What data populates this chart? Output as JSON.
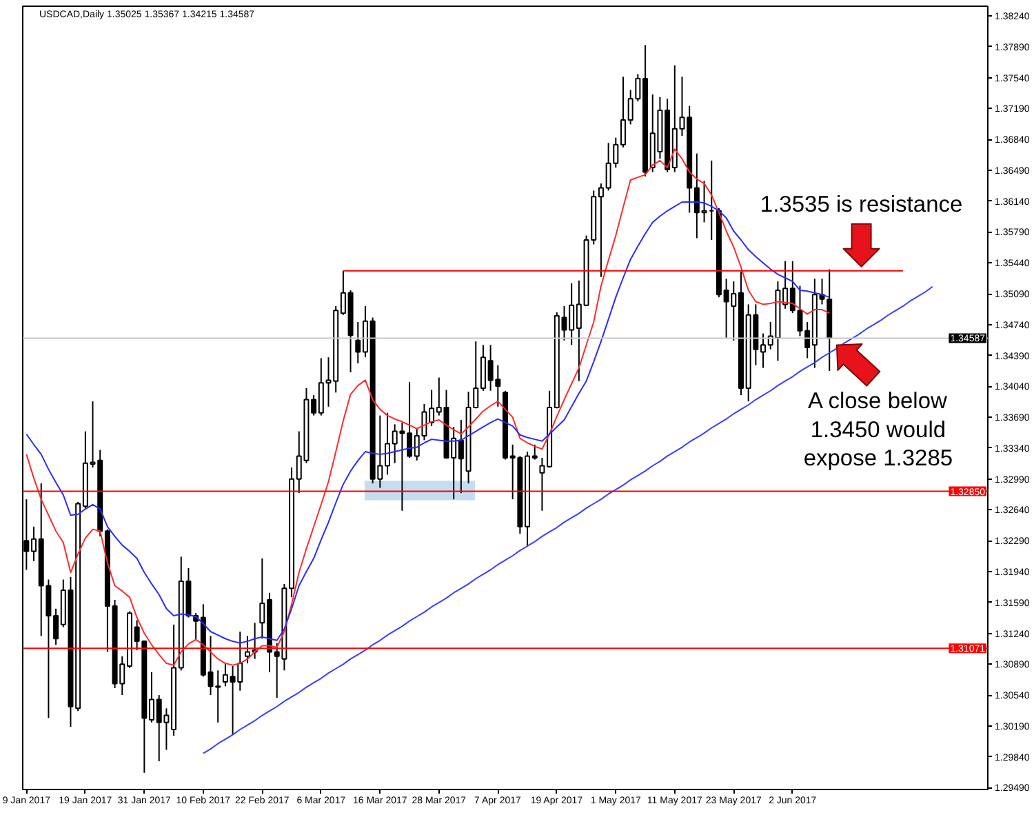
{
  "chart_data": {
    "type": "candlestick",
    "title": "USDCAD,Daily 1.35025 1.35367 1.34215 1.34587",
    "color": "#000000",
    "grid": false,
    "ylim": [
      1.2947,
      1.3835
    ],
    "yticks": [
      {
        "value": 1.2949,
        "label": "1.29490"
      },
      {
        "value": 1.2984,
        "label": "1.29840"
      },
      {
        "value": 1.3019,
        "label": "1.30190"
      },
      {
        "value": 1.3054,
        "label": "1.30540"
      },
      {
        "value": 1.3089,
        "label": "1.30890"
      },
      {
        "value": 1.3124,
        "label": "1.31240"
      },
      {
        "value": 1.3159,
        "label": "1.31590"
      },
      {
        "value": 1.3194,
        "label": "1.31940"
      },
      {
        "value": 1.3229,
        "label": "1.32290"
      },
      {
        "value": 1.3264,
        "label": "1.32640"
      },
      {
        "value": 1.3299,
        "label": "1.32990"
      },
      {
        "value": 1.3334,
        "label": "1.33340"
      },
      {
        "value": 1.3369,
        "label": "1.33690"
      },
      {
        "value": 1.3404,
        "label": "1.34040"
      },
      {
        "value": 1.3439,
        "label": "1.34390"
      },
      {
        "value": 1.3474,
        "label": "1.34740"
      },
      {
        "value": 1.3509,
        "label": "1.35090"
      },
      {
        "value": 1.3544,
        "label": "1.35440"
      },
      {
        "value": 1.3579,
        "label": "1.35790"
      },
      {
        "value": 1.3614,
        "label": "1.36140"
      },
      {
        "value": 1.3649,
        "label": "1.36490"
      },
      {
        "value": 1.3684,
        "label": "1.36840"
      },
      {
        "value": 1.3719,
        "label": "1.37190"
      },
      {
        "value": 1.3754,
        "label": "1.37540"
      },
      {
        "value": 1.3789,
        "label": "1.37890"
      },
      {
        "value": 1.3824,
        "label": "1.38240"
      }
    ],
    "categories": [
      "9 Jan 2017",
      null,
      null,
      null,
      null,
      null,
      null,
      null,
      "19 Jan 2017",
      null,
      null,
      null,
      null,
      null,
      null,
      null,
      "31 Jan 2017",
      null,
      null,
      null,
      null,
      null,
      null,
      null,
      "10 Feb 2017",
      null,
      null,
      null,
      null,
      null,
      null,
      null,
      "22 Feb 2017",
      null,
      null,
      null,
      null,
      null,
      null,
      null,
      "6 Mar 2017",
      null,
      null,
      null,
      null,
      null,
      null,
      null,
      "16 Mar 2017",
      null,
      null,
      null,
      null,
      null,
      null,
      null,
      "28 Mar 2017",
      null,
      null,
      null,
      null,
      null,
      null,
      null,
      "7 Apr 2017",
      null,
      null,
      null,
      null,
      null,
      null,
      null,
      "19 Apr 2017",
      null,
      null,
      null,
      null,
      null,
      null,
      null,
      "1 May 2017",
      null,
      null,
      null,
      null,
      null,
      null,
      null,
      "11 May 2017",
      null,
      null,
      null,
      null,
      null,
      null,
      null,
      "23 May 2017",
      null,
      null,
      null,
      null,
      null,
      null,
      null,
      "2 Jun 2017",
      null,
      null,
      null,
      null,
      null,
      null,
      null,
      null,
      null,
      null,
      null,
      null,
      null,
      null,
      null,
      null,
      null,
      null,
      null,
      null,
      null,
      null,
      null,
      null,
      null,
      null
    ],
    "ohlc": [
      [
        1.3229,
        1.3276,
        1.3196,
        1.3217
      ],
      [
        1.3217,
        1.3245,
        1.3206,
        1.3231
      ],
      [
        1.3231,
        1.3294,
        1.3121,
        1.3178
      ],
      [
        1.3178,
        1.3185,
        1.3028,
        1.3144
      ],
      [
        1.3144,
        1.3152,
        1.3111,
        1.3118
      ],
      [
        1.3134,
        1.3185,
        1.3131,
        1.3173
      ],
      [
        1.3173,
        1.3188,
        1.3018,
        1.3041
      ],
      [
        1.3039,
        1.3273,
        1.3036,
        1.3271
      ],
      [
        1.3268,
        1.3353,
        1.3265,
        1.3317
      ],
      [
        1.3316,
        1.3387,
        1.3312,
        1.3318
      ],
      [
        1.332,
        1.3332,
        1.3234,
        1.324
      ],
      [
        1.324,
        1.3242,
        1.3103,
        1.3155
      ],
      [
        1.3155,
        1.3162,
        1.3062,
        1.3067
      ],
      [
        1.3067,
        1.3098,
        1.3054,
        1.3089
      ],
      [
        1.3087,
        1.3149,
        1.3085,
        1.3147
      ],
      [
        1.3131,
        1.3139,
        1.3105,
        1.3115
      ],
      [
        1.3115,
        1.3116,
        1.2966,
        1.3028
      ],
      [
        1.3026,
        1.308,
        1.3023,
        1.3049
      ],
      [
        1.3049,
        1.3054,
        1.2979,
        1.3023
      ],
      [
        1.3023,
        1.3039,
        1.2992,
        1.3031
      ],
      [
        1.3015,
        1.3134,
        1.3008,
        1.3085
      ],
      [
        1.3085,
        1.3211,
        1.3082,
        1.3183
      ],
      [
        1.3183,
        1.3198,
        1.3142,
        1.3144
      ],
      [
        1.3144,
        1.3147,
        1.3116,
        1.3138
      ],
      [
        1.3142,
        1.3157,
        1.3075,
        1.3077
      ],
      [
        1.308,
        1.3121,
        1.3054,
        1.3064
      ],
      [
        1.3064,
        1.3082,
        1.3023,
        1.3063
      ],
      [
        1.3069,
        1.309,
        1.3064,
        1.3077
      ],
      [
        1.3075,
        1.3087,
        1.3009,
        1.3069
      ],
      [
        1.3069,
        1.3126,
        1.3059,
        1.309
      ],
      [
        1.3098,
        1.3121,
        1.309,
        1.3103
      ],
      [
        1.3103,
        1.3136,
        1.3095,
        1.3105
      ],
      [
        1.3136,
        1.3209,
        1.3118,
        1.3158
      ],
      [
        1.3162,
        1.317,
        1.308,
        1.3103
      ],
      [
        1.3103,
        1.3113,
        1.3051,
        1.3098
      ],
      [
        1.3095,
        1.318,
        1.3082,
        1.3175
      ],
      [
        1.3175,
        1.3312,
        1.3165,
        1.3299
      ],
      [
        1.3299,
        1.3353,
        1.3283,
        1.3325
      ],
      [
        1.332,
        1.3402,
        1.3317,
        1.3389
      ],
      [
        1.3389,
        1.3394,
        1.3371,
        1.3374
      ],
      [
        1.3374,
        1.3436,
        1.3371,
        1.3408
      ],
      [
        1.3408,
        1.3437,
        1.3381,
        1.3411
      ],
      [
        1.341,
        1.3495,
        1.3397,
        1.349
      ],
      [
        1.3487,
        1.3535,
        1.3485,
        1.351
      ],
      [
        1.351,
        1.3513,
        1.342,
        1.3462
      ],
      [
        1.3456,
        1.3477,
        1.343,
        1.3443
      ],
      [
        1.3443,
        1.3495,
        1.3437,
        1.3478
      ],
      [
        1.3478,
        1.3482,
        1.3294,
        1.3299
      ],
      [
        1.3299,
        1.3371,
        1.3289,
        1.3314
      ],
      [
        1.3314,
        1.3374,
        1.3304,
        1.3339
      ],
      [
        1.3339,
        1.3361,
        1.3317,
        1.3353
      ],
      [
        1.3353,
        1.3363,
        1.3263,
        1.3351
      ],
      [
        1.3351,
        1.3409,
        1.3323,
        1.3325
      ],
      [
        1.3325,
        1.3356,
        1.332,
        1.3348
      ],
      [
        1.3348,
        1.3384,
        1.3343,
        1.3375
      ],
      [
        1.3363,
        1.34,
        1.3359,
        1.3379
      ],
      [
        1.3375,
        1.3414,
        1.3371,
        1.338
      ],
      [
        1.338,
        1.34,
        1.3322,
        1.3323
      ],
      [
        1.3323,
        1.3358,
        1.3276,
        1.3345
      ],
      [
        1.3343,
        1.3366,
        1.3283,
        1.3322
      ],
      [
        1.3308,
        1.3398,
        1.3294,
        1.338
      ],
      [
        1.338,
        1.3455,
        1.3379,
        1.3402
      ],
      [
        1.3402,
        1.3451,
        1.3399,
        1.3437
      ],
      [
        1.3433,
        1.3451,
        1.3399,
        1.3411
      ],
      [
        1.3412,
        1.3428,
        1.3381,
        1.3404
      ],
      [
        1.3397,
        1.3399,
        1.3321,
        1.3323
      ],
      [
        1.3325,
        1.3338,
        1.3276,
        1.3323
      ],
      [
        1.3323,
        1.3325,
        1.3237,
        1.3245
      ],
      [
        1.3245,
        1.333,
        1.3223,
        1.3325
      ],
      [
        1.3325,
        1.3338,
        1.3321,
        1.3323
      ],
      [
        1.3306,
        1.3323,
        1.3263,
        1.3314
      ],
      [
        1.3313,
        1.3399,
        1.3312,
        1.338
      ],
      [
        1.338,
        1.3488,
        1.3379,
        1.3484
      ],
      [
        1.3482,
        1.3495,
        1.3456,
        1.3468
      ],
      [
        1.3468,
        1.3521,
        1.3451,
        1.3496
      ],
      [
        1.347,
        1.3524,
        1.341,
        1.3497
      ],
      [
        1.3496,
        1.3575,
        1.3495,
        1.357
      ],
      [
        1.357,
        1.3626,
        1.3565,
        1.3619
      ],
      [
        1.3619,
        1.3634,
        1.3528,
        1.3629
      ],
      [
        1.3629,
        1.368,
        1.3626,
        1.3657
      ],
      [
        1.3657,
        1.3686,
        1.3652,
        1.3678
      ],
      [
        1.3678,
        1.3755,
        1.3675,
        1.3706
      ],
      [
        1.3706,
        1.374,
        1.3701,
        1.373
      ],
      [
        1.373,
        1.3758,
        1.3727,
        1.3753
      ],
      [
        1.3753,
        1.3791,
        1.3642,
        1.3647
      ],
      [
        1.3652,
        1.3735,
        1.3647,
        1.3691
      ],
      [
        1.367,
        1.3732,
        1.3662,
        1.3717
      ],
      [
        1.3717,
        1.373,
        1.3647,
        1.365
      ],
      [
        1.3652,
        1.3768,
        1.3647,
        1.3696
      ],
      [
        1.3696,
        1.3755,
        1.3688,
        1.3709
      ],
      [
        1.3709,
        1.3722,
        1.3601,
        1.3629
      ],
      [
        1.3629,
        1.3668,
        1.3572,
        1.3601
      ],
      [
        1.3601,
        1.3637,
        1.359,
        1.3603
      ],
      [
        1.3603,
        1.366,
        1.357,
        1.3603
      ],
      [
        1.3603,
        1.3606,
        1.3505,
        1.3508
      ],
      [
        1.3513,
        1.3526,
        1.3459,
        1.35
      ],
      [
        1.3495,
        1.3523,
        1.3456,
        1.3509
      ],
      [
        1.351,
        1.3534,
        1.3394,
        1.3402
      ],
      [
        1.3402,
        1.3497,
        1.3387,
        1.3485
      ],
      [
        1.3485,
        1.3497,
        1.3428,
        1.3446
      ],
      [
        1.3443,
        1.3464,
        1.3425,
        1.3451
      ],
      [
        1.3451,
        1.3477,
        1.3446,
        1.3461
      ],
      [
        1.3459,
        1.3523,
        1.3433,
        1.3513
      ],
      [
        1.3497,
        1.3546,
        1.3492,
        1.3515
      ],
      [
        1.3515,
        1.3546,
        1.3487,
        1.349
      ],
      [
        1.349,
        1.3518,
        1.3461,
        1.3467
      ],
      [
        1.3467,
        1.3477,
        1.3436,
        1.3448
      ],
      [
        1.3451,
        1.3526,
        1.3425,
        1.3508
      ],
      [
        1.3508,
        1.3526,
        1.3497,
        1.3503
      ],
      [
        1.35025,
        1.35367,
        1.34215,
        1.34587
      ],
      null,
      null,
      null,
      null,
      null,
      null,
      null,
      null,
      null,
      null,
      null,
      null,
      null,
      null,
      null,
      null,
      null,
      null,
      null,
      null,
      null
    ],
    "series": [
      {
        "type": "line",
        "color": "#ff2b2b",
        "values": [
          1.3327,
          1.33,
          1.3276,
          1.3258,
          1.324,
          1.3227,
          1.3193,
          1.3214,
          1.3232,
          1.3242,
          1.324,
          1.3204,
          1.3178,
          1.3172,
          1.3165,
          1.3142,
          1.3124,
          1.3111,
          1.31,
          1.309,
          1.3088,
          1.3103,
          1.3112,
          1.3117,
          1.3111,
          1.3103,
          1.3095,
          1.309,
          1.3088,
          1.309,
          1.3095,
          1.3103,
          1.311,
          1.311,
          1.3108,
          1.3126,
          1.3157,
          1.3193,
          1.322,
          1.3245,
          1.327,
          1.3296,
          1.333,
          1.3365,
          1.3395,
          1.3405,
          1.3411,
          1.3389,
          1.3378,
          1.3371,
          1.3367,
          1.3364,
          1.336,
          1.3356,
          1.336,
          1.3364,
          1.3366,
          1.336,
          1.3355,
          1.335,
          1.3358,
          1.3367,
          1.3376,
          1.3382,
          1.3387,
          1.3378,
          1.3369,
          1.3345,
          1.334,
          1.3336,
          1.3333,
          1.335,
          1.337,
          1.3389,
          1.3407,
          1.3425,
          1.3451,
          1.3477,
          1.3518,
          1.3547,
          1.3575,
          1.3607,
          1.3638,
          1.3641,
          1.3644,
          1.3655,
          1.366,
          1.3652,
          1.3673,
          1.3662,
          1.3647,
          1.3639,
          1.3634,
          1.3621,
          1.3601,
          1.358,
          1.3562,
          1.3539,
          1.3513,
          1.35,
          1.3497,
          1.3498,
          1.35,
          1.3499,
          1.3498,
          1.3492,
          1.3486,
          1.3491,
          1.3491,
          1.3487,
          null,
          null,
          null,
          null,
          null,
          null,
          null,
          null,
          null,
          null,
          null,
          null,
          null,
          null,
          null,
          null,
          null,
          null,
          null,
          null,
          null
        ]
      },
      {
        "type": "line",
        "color": "#2b2bff",
        "values": [
          1.335,
          1.3338,
          1.3327,
          1.331,
          1.3295,
          1.3281,
          1.3258,
          1.3259,
          1.3265,
          1.327,
          1.3265,
          1.3245,
          1.3234,
          1.3224,
          1.3217,
          1.3209,
          1.3193,
          1.318,
          1.3168,
          1.3152,
          1.3144,
          1.3146,
          1.3145,
          1.3143,
          1.3135,
          1.3126,
          1.3122,
          1.3118,
          1.3115,
          1.3113,
          1.3115,
          1.3118,
          1.312,
          1.3118,
          1.3116,
          1.3129,
          1.3152,
          1.3178,
          1.3194,
          1.3209,
          1.323,
          1.325,
          1.3272,
          1.3293,
          1.3308,
          1.332,
          1.333,
          1.3328,
          1.3327,
          1.3328,
          1.333,
          1.3332,
          1.3334,
          1.3335,
          1.334,
          1.3344,
          1.3343,
          1.3342,
          1.3342,
          1.3343,
          1.3348,
          1.3353,
          1.3358,
          1.3363,
          1.3367,
          1.3363,
          1.3359,
          1.3349,
          1.3346,
          1.3344,
          1.3342,
          1.335,
          1.3358,
          1.3366,
          1.3381,
          1.3396,
          1.341,
          1.3432,
          1.3455,
          1.348,
          1.3505,
          1.3527,
          1.3548,
          1.3563,
          1.3577,
          1.359,
          1.3597,
          1.3603,
          1.3608,
          1.3613,
          1.3613,
          1.3613,
          1.3612,
          1.3608,
          1.3603,
          1.3595,
          1.358,
          1.357,
          1.3559,
          1.3551,
          1.3544,
          1.3537,
          1.3531,
          1.3527,
          1.3523,
          1.3513,
          1.3512,
          1.351,
          1.3508,
          1.3505,
          null,
          null,
          null,
          null,
          null,
          null,
          null,
          null,
          null,
          null,
          null,
          null,
          null,
          null,
          null,
          null,
          null,
          null,
          null,
          null,
          null
        ]
      },
      {
        "type": "line",
        "color": "#ff0000",
        "values": [
          null,
          null,
          null,
          null,
          null,
          null,
          null,
          null,
          null,
          null,
          null,
          null,
          null,
          null,
          null,
          null,
          null,
          null,
          null,
          null,
          null,
          null,
          null,
          null,
          null,
          null,
          null,
          null,
          null,
          null,
          null,
          null,
          null,
          null,
          null,
          null,
          null,
          null,
          null,
          null,
          null,
          null,
          null,
          1.3535,
          1.3535,
          1.3535,
          1.3535,
          1.3535,
          1.3535,
          1.3535,
          1.3535,
          1.3535,
          1.3535,
          1.3535,
          1.3535,
          1.3535,
          1.3535,
          1.3535,
          1.3535,
          1.3535,
          1.3535,
          1.3535,
          1.3535,
          1.3535,
          1.3535,
          1.3535,
          1.3535,
          1.3535,
          1.3535,
          1.3535,
          1.3535,
          1.3535,
          1.3535,
          1.3535,
          1.3535,
          1.3535,
          1.3535,
          1.3535,
          1.3535,
          1.3535,
          1.3535,
          1.3535,
          1.3535,
          1.3535,
          1.3535,
          1.3535,
          1.3535,
          1.3535,
          1.3535,
          1.3535,
          1.3535,
          1.3535,
          1.3535,
          1.3535,
          1.3535,
          1.3535,
          1.3535,
          1.3535,
          1.3535,
          1.3535,
          1.3535,
          1.3535,
          1.3535,
          1.3535,
          1.3535,
          1.3535,
          1.3535,
          1.3535,
          1.3535,
          1.3535,
          1.3535,
          1.3535,
          1.3535,
          1.3535,
          1.3535,
          1.3535,
          1.3535,
          1.3535,
          1.3535,
          1.3535,
          null,
          null,
          null,
          null,
          null,
          null,
          null,
          null,
          null,
          null,
          null
        ]
      },
      {
        "type": "line",
        "color": "#3c3cff",
        "values": [
          null,
          null,
          null,
          null,
          null,
          null,
          null,
          null,
          null,
          null,
          null,
          null,
          null,
          null,
          null,
          null,
          null,
          null,
          null,
          null,
          null,
          null,
          null,
          null,
          1.2988,
          1.2993,
          1.2999,
          1.3004,
          1.3009,
          1.3015,
          1.302,
          1.3025,
          1.3031,
          1.3036,
          1.3041,
          1.3047,
          1.3052,
          1.3057,
          1.3063,
          1.3068,
          1.3073,
          1.3079,
          1.3084,
          1.3089,
          1.3095,
          1.31,
          1.3105,
          1.3111,
          1.3116,
          1.3122,
          1.3127,
          1.3132,
          1.3138,
          1.3143,
          1.3148,
          1.3154,
          1.3159,
          1.3164,
          1.317,
          1.3175,
          1.318,
          1.3186,
          1.3191,
          1.3196,
          1.3202,
          1.3207,
          1.3212,
          1.3218,
          1.3223,
          1.3228,
          1.3234,
          1.3239,
          1.3244,
          1.325,
          1.3255,
          1.326,
          1.3266,
          1.3271,
          1.3276,
          1.3282,
          1.3287,
          1.3292,
          1.3298,
          1.3303,
          1.3308,
          1.3314,
          1.3319,
          1.3325,
          1.333,
          1.3335,
          1.3341,
          1.3346,
          1.3351,
          1.3357,
          1.3362,
          1.3367,
          1.3373,
          1.3378,
          1.3383,
          1.3389,
          1.3394,
          1.3399,
          1.3405,
          1.341,
          1.3415,
          1.3421,
          1.3426,
          1.3431,
          1.3437,
          1.3442,
          1.3447,
          1.3453,
          1.3458,
          1.3463,
          1.3469,
          1.3474,
          1.3479,
          1.3485,
          1.349,
          1.3495,
          1.3501,
          1.3506,
          1.3511,
          1.3517,
          null,
          null,
          null,
          null,
          null,
          null,
          null
        ]
      }
    ],
    "bands": [
      {
        "axis": "y",
        "from": 1.3275,
        "to": 1.3297,
        "color": "#c6dcf0"
      }
    ],
    "ref_lines": [
      {
        "axis": "y",
        "value": 1.3285,
        "label": "1.32850",
        "color": "#ff0000"
      },
      {
        "axis": "y",
        "value": 1.31071,
        "label": "1.31071",
        "color": "#ff0000"
      },
      {
        "axis": "y",
        "value": 1.34587,
        "label": "1.34587",
        "color": "#c8c8c8"
      }
    ],
    "annotations": [
      {
        "text": "1.3535 is resistance",
        "y": 1.3535
      },
      {
        "text": "A close below\n1.3450 would\nexpose 1.3285",
        "y": 1.34587
      }
    ]
  }
}
